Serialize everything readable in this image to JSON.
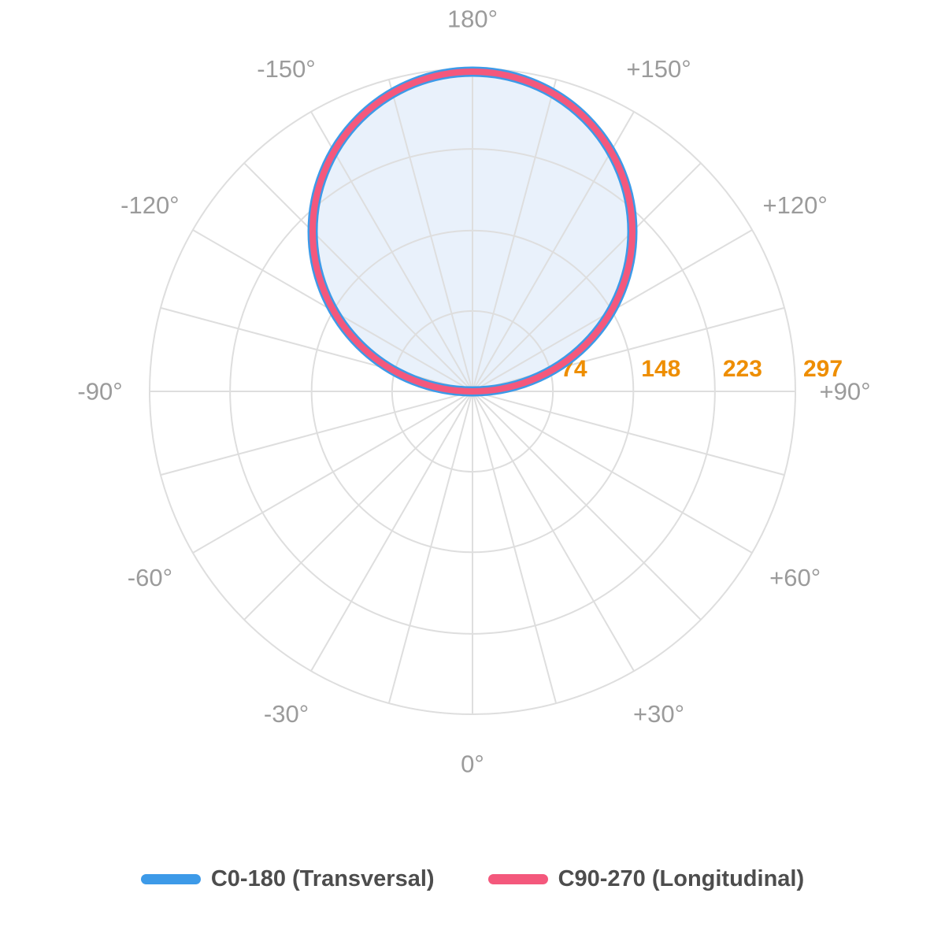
{
  "chart_data": {
    "type": "polar",
    "variant": "photometric-intensity-distribution",
    "units": "cd",
    "title": "",
    "radial_ticks": [
      74,
      148,
      223,
      297
    ],
    "radial_max": 297,
    "spoke_step_deg": 15,
    "grid": true,
    "legend_position": "bottom",
    "angle_convention": "0° at bottom (nadir), 180° at top; positive angles labeled on the right, negative on the left; angle labels every 30°, grid spokes every 15°",
    "angle_ticks": [
      {
        "angle": -150,
        "label": "-150°"
      },
      {
        "angle": -120,
        "label": "-120°"
      },
      {
        "angle": -90,
        "label": "-90°"
      },
      {
        "angle": -60,
        "label": "-60°"
      },
      {
        "angle": -30,
        "label": "-30°"
      },
      {
        "angle": 0,
        "label": "0°"
      },
      {
        "angle": 30,
        "label": "+30°"
      },
      {
        "angle": 60,
        "label": "+60°"
      },
      {
        "angle": 90,
        "label": "+90°"
      },
      {
        "angle": 120,
        "label": "+120°"
      },
      {
        "angle": 150,
        "label": "+150°"
      },
      {
        "angle": 180,
        "label": "180°"
      }
    ],
    "series": [
      {
        "name": "C0-180 (Transversal)",
        "color": "#3D9AE8",
        "fill_color": "#E9F1FB",
        "max_cd": 297,
        "peak_angle": 180,
        "shape": "cosine (lambertian) lobe: I(gamma) = 297 * cos(gamma), gamma measured from the 180° (up) direction",
        "points": [
          {
            "gamma": -90,
            "cd": 0
          },
          {
            "gamma": -75,
            "cd": 77
          },
          {
            "gamma": -60,
            "cd": 149
          },
          {
            "gamma": -45,
            "cd": 210
          },
          {
            "gamma": -30,
            "cd": 257
          },
          {
            "gamma": -15,
            "cd": 287
          },
          {
            "gamma": 0,
            "cd": 297
          },
          {
            "gamma": 15,
            "cd": 287
          },
          {
            "gamma": 30,
            "cd": 257
          },
          {
            "gamma": 45,
            "cd": 210
          },
          {
            "gamma": 60,
            "cd": 149
          },
          {
            "gamma": 75,
            "cd": 77
          },
          {
            "gamma": 90,
            "cd": 0
          }
        ]
      },
      {
        "name": "C90-270 (Longitudinal)",
        "color": "#F4587C",
        "fill_color": "",
        "max_cd": 297,
        "peak_angle": 180,
        "shape": "cosine (lambertian) lobe: I(gamma) = 297 * cos(gamma), gamma measured from the 180° (up) direction",
        "points": [
          {
            "gamma": -90,
            "cd": 0
          },
          {
            "gamma": -75,
            "cd": 77
          },
          {
            "gamma": -60,
            "cd": 149
          },
          {
            "gamma": -45,
            "cd": 210
          },
          {
            "gamma": -30,
            "cd": 257
          },
          {
            "gamma": -15,
            "cd": 287
          },
          {
            "gamma": 0,
            "cd": 297
          },
          {
            "gamma": 15,
            "cd": 287
          },
          {
            "gamma": 30,
            "cd": 257
          },
          {
            "gamma": 45,
            "cd": 210
          },
          {
            "gamma": 60,
            "cd": 149
          },
          {
            "gamma": 75,
            "cd": 77
          },
          {
            "gamma": 90,
            "cd": 0
          }
        ]
      }
    ]
  },
  "legend": {
    "items": [
      {
        "label": "C0-180 (Transversal)",
        "color": "#3D9AE8"
      },
      {
        "label": "C90-270 (Longitudinal)",
        "color": "#F4587C"
      }
    ]
  },
  "style": {
    "background": "#FFFFFF",
    "grid_color": "#DEDEDE",
    "angle_label_color": "#9B9B9B",
    "radial_label_color": "#EE8E00",
    "legend_text_color": "#4D4D4D"
  }
}
